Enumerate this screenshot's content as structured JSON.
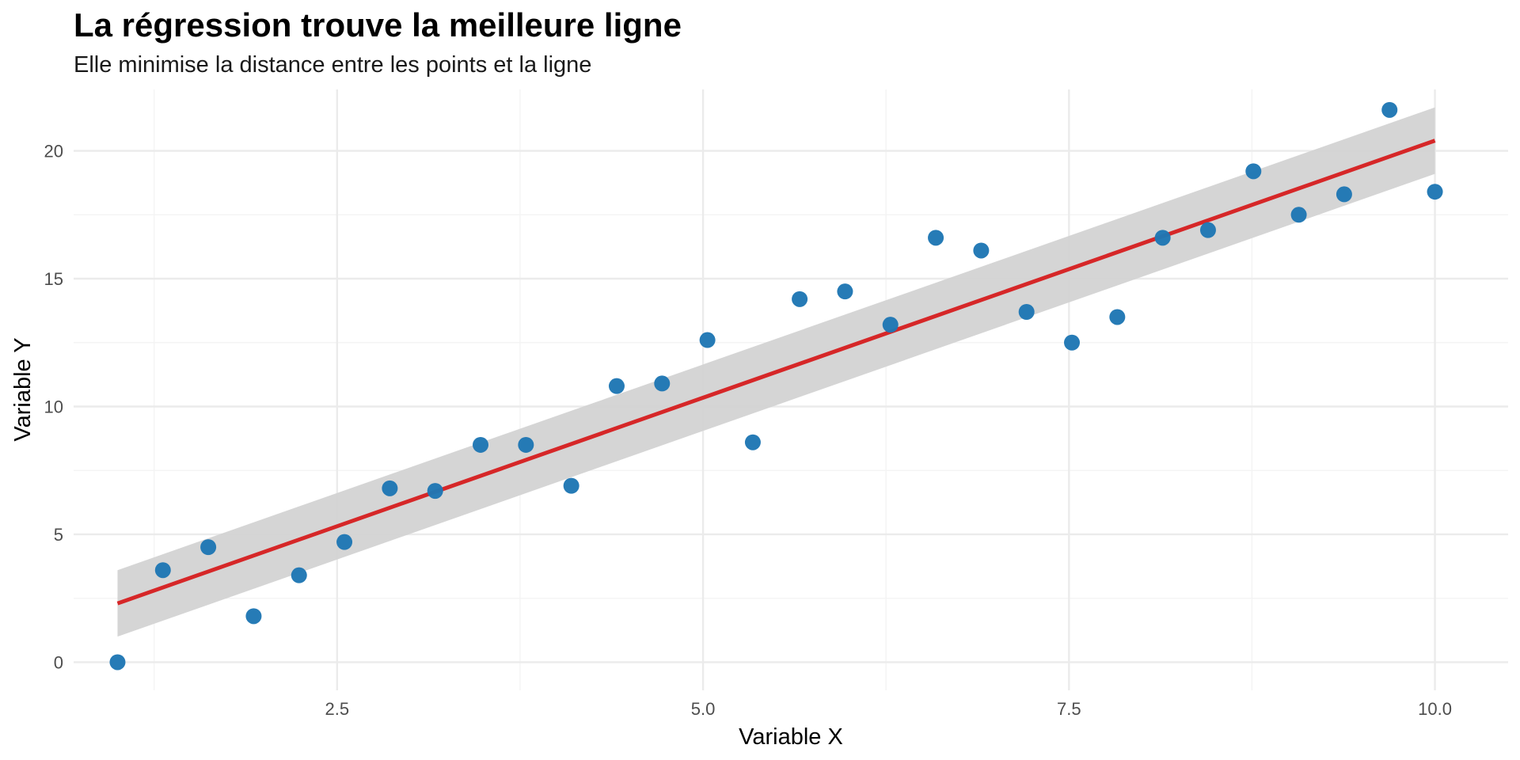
{
  "chart_data": {
    "type": "scatter",
    "title": "La régression trouve la meilleure ligne",
    "subtitle": "Elle minimise la distance entre les points et la ligne",
    "xlabel": "Variable X",
    "ylabel": "Variable Y",
    "xlim": [
      0.7,
      10.5
    ],
    "ylim": [
      -1.1,
      22.4
    ],
    "x_ticks": [
      2.5,
      5.0,
      7.5,
      10.0
    ],
    "x_tick_labels": [
      "2.5",
      "5.0",
      "7.5",
      "10.0"
    ],
    "y_ticks": [
      0,
      5,
      10,
      15,
      20
    ],
    "y_tick_labels": [
      "0",
      "5",
      "10",
      "15",
      "20"
    ],
    "grid": true,
    "legend": "none",
    "colors": {
      "points": "#1f77b4",
      "regression_line": "#d62728",
      "confidence_band": "#d3d3d3",
      "grid_major": "#ebebeb",
      "grid_minor": "#f3f3f3"
    },
    "series": [
      {
        "type": "scatter",
        "x": [
          1.0,
          1.31,
          1.62,
          1.93,
          2.24,
          2.55,
          2.86,
          3.17,
          3.48,
          3.79,
          4.1,
          4.41,
          4.72,
          5.03,
          5.34,
          5.66,
          5.97,
          6.28,
          6.59,
          6.9,
          7.21,
          7.52,
          7.83,
          8.14,
          8.45,
          8.76,
          9.07,
          9.38,
          9.69,
          10.0
        ],
        "y": [
          0.0,
          3.6,
          4.5,
          1.8,
          3.4,
          4.7,
          6.8,
          6.7,
          8.5,
          8.5,
          6.9,
          10.8,
          10.9,
          12.6,
          8.6,
          14.2,
          14.5,
          13.2,
          16.6,
          16.1,
          13.7,
          12.5,
          13.5,
          16.6,
          16.9,
          19.2,
          17.5,
          18.3,
          21.6,
          18.4
        ]
      }
    ],
    "regression": {
      "x": [
        1.0,
        10.0
      ],
      "y": [
        2.3,
        20.4
      ],
      "ci_lower": [
        1.0,
        19.1
      ],
      "ci_upper": [
        3.6,
        21.7
      ]
    }
  }
}
